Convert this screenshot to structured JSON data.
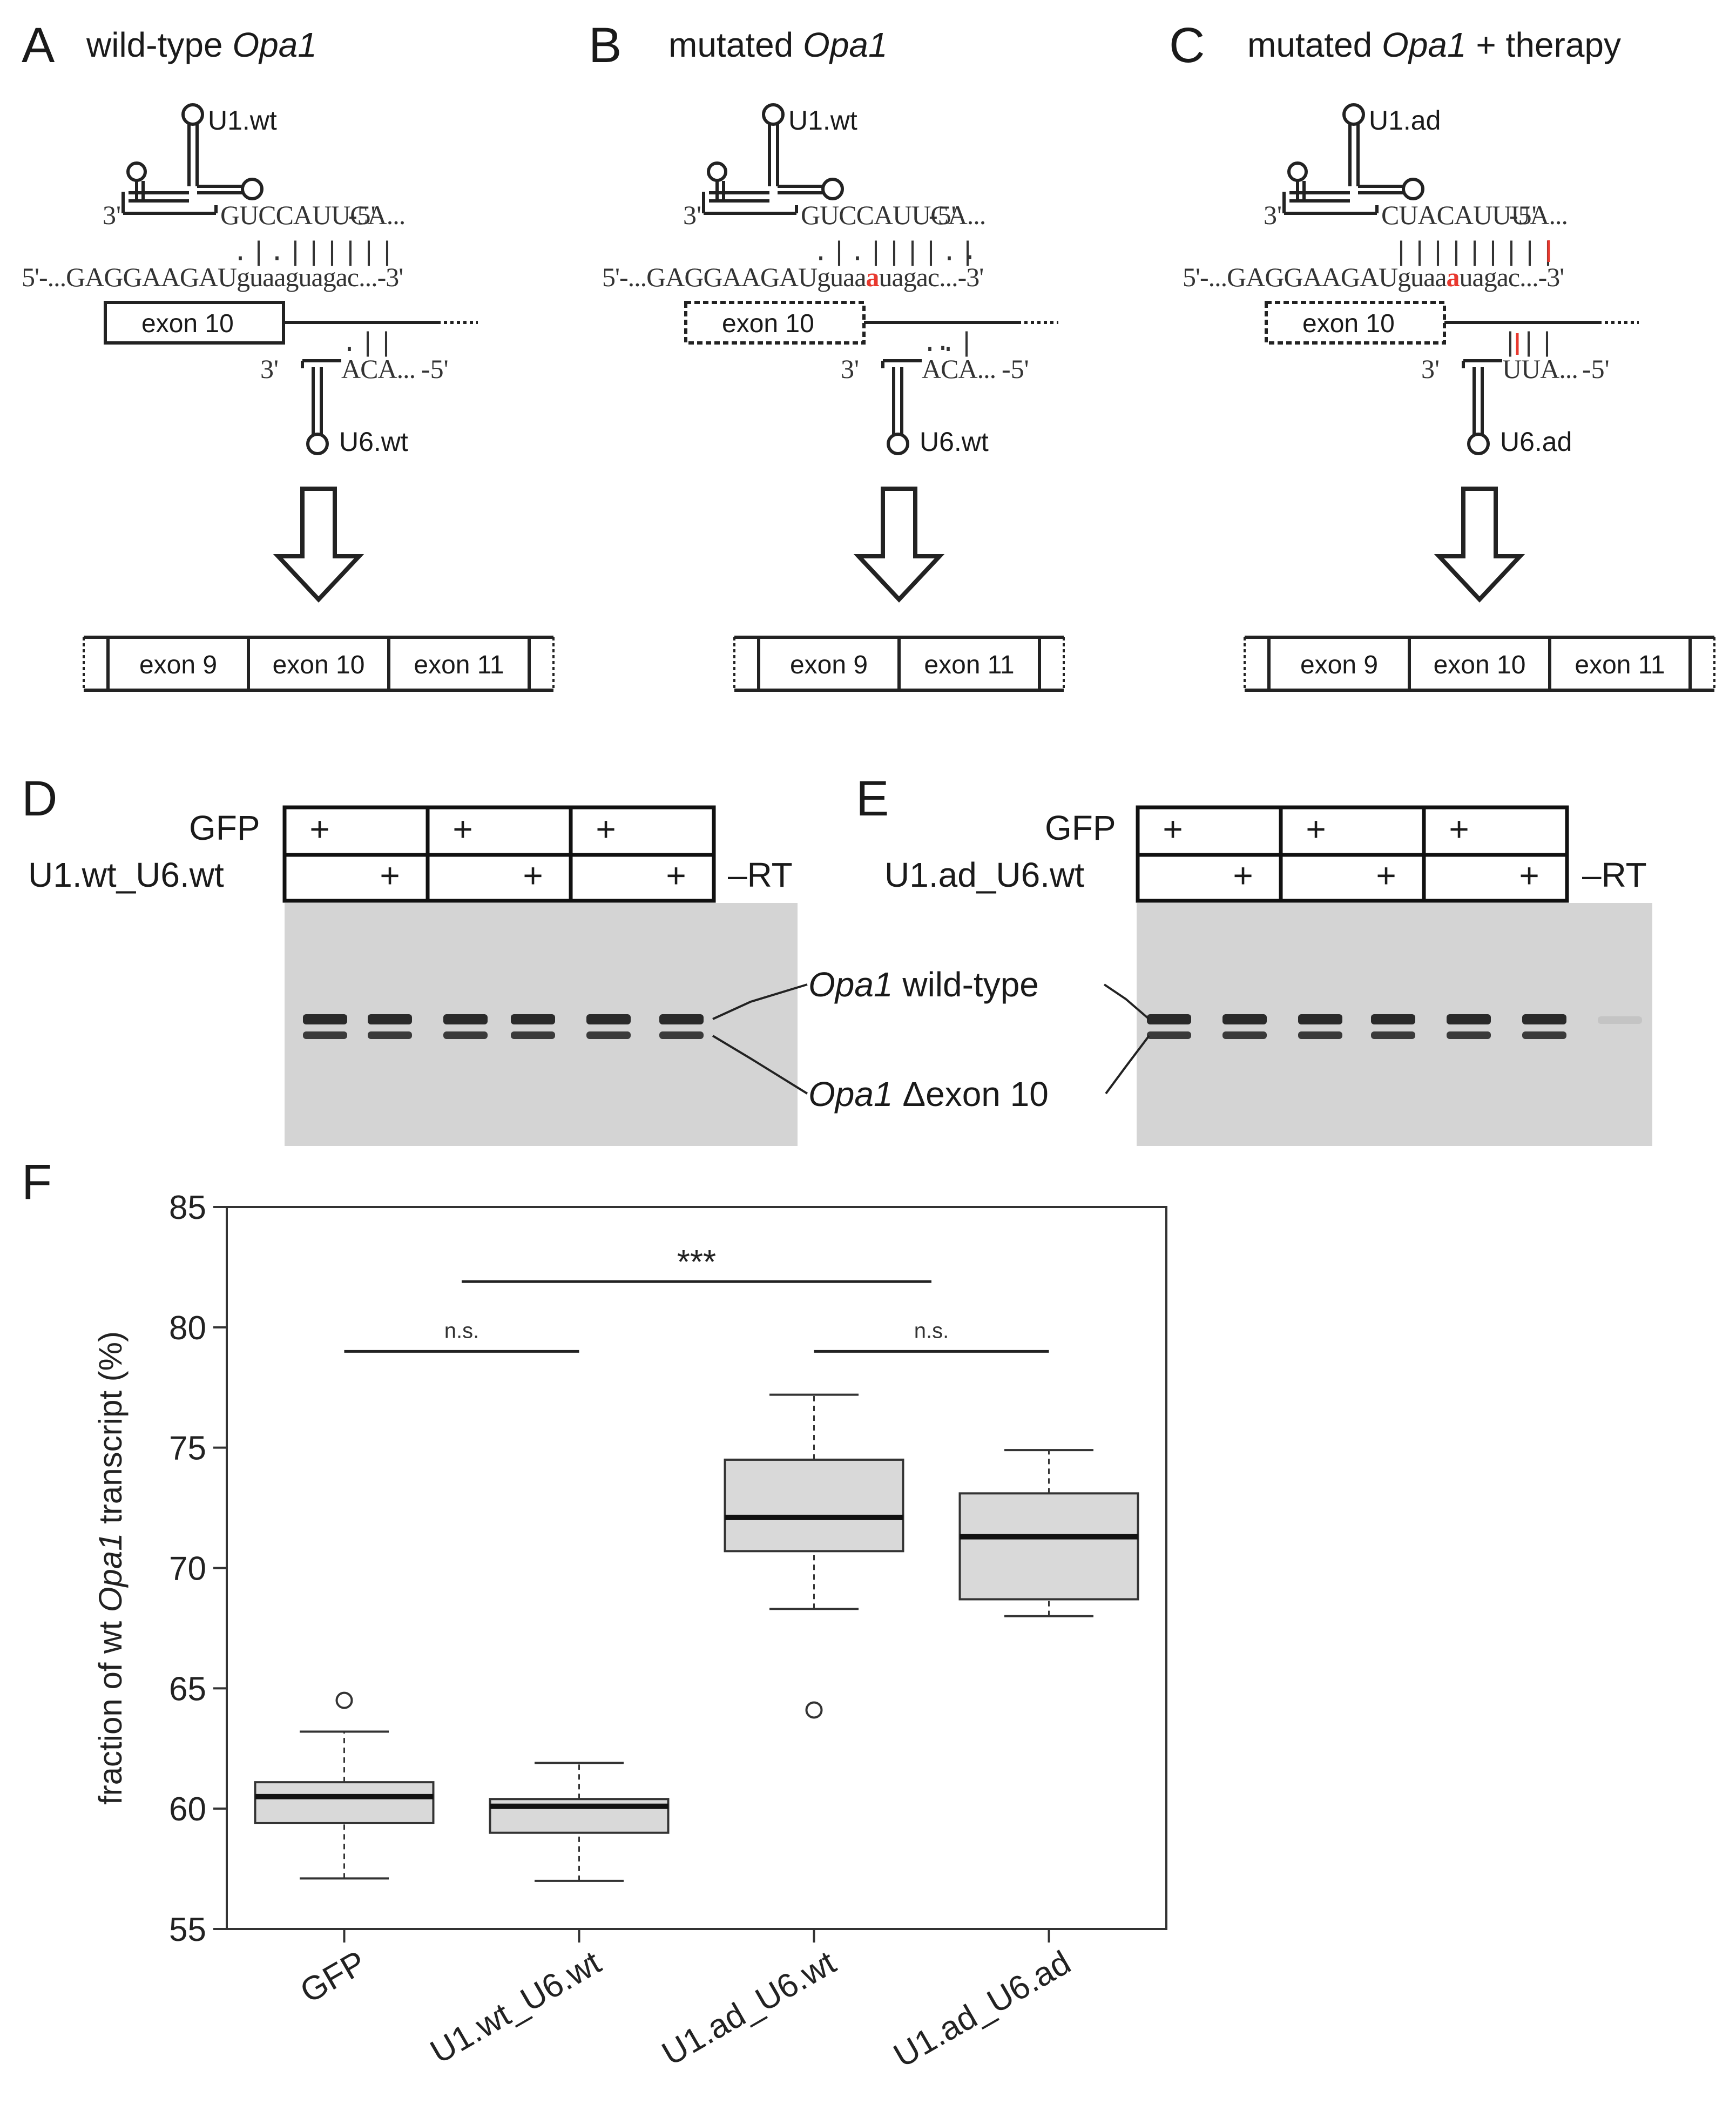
{
  "panels": {
    "A": {
      "letter": "A",
      "title_prefix": "wild-type ",
      "title_italic": "Opa1",
      "title_suffix": "",
      "u1_name": "U1.wt",
      "u1_seq_3": "3'",
      "u1_seq": "GUCCAUUCA...",
      "u1_seq_5": "-5'",
      "pairing_top": ".|.||||||",
      "pre_mrna_5": "5'-...",
      "pre_mrna_exon": "GAGGAAGAU",
      "pre_mrna_intron_a": "guaa",
      "pre_mrna_mut": "g",
      "pre_mrna_intron_b": "uagac...",
      "pre_mrna_3": "-3'",
      "exon_box": "exon 10",
      "pairing_bottom": ".||",
      "u6_seq_3": "3'",
      "u6_seq": "ACA...",
      "u6_seq_5": "-5'",
      "u6_name": "U6.wt",
      "product_exons": [
        "exon 9",
        "exon 10",
        "exon 11"
      ]
    },
    "B": {
      "letter": "B",
      "title_prefix": "mutated ",
      "title_italic": "Opa1",
      "title_suffix": "",
      "u1_name": "U1.wt",
      "u1_seq_3": "3'",
      "u1_seq": "GUCCAUUCA...",
      "u1_seq_5": "-5'",
      "pairing_top": ".|.||||.|",
      "pre_mrna_5": "5'-...",
      "pre_mrna_exon": "GAGGAAGAU",
      "pre_mrna_intron_a": "guaa",
      "pre_mrna_mut": "a",
      "pre_mrna_intron_b": "uagac...",
      "pre_mrna_3": "-3'",
      "exon_box": "exon 10",
      "pairing_bottom": "..|",
      "u6_seq_3": "3'",
      "u6_seq": "ACA...",
      "u6_seq_5": "-5'",
      "u6_name": "U6.wt",
      "product_exons": [
        "exon 9",
        "exon 11"
      ]
    },
    "C": {
      "letter": "C",
      "title_prefix": "mutated ",
      "title_italic": "Opa1",
      "title_suffix": " + therapy",
      "u1_name": "U1.ad",
      "u1_seq_3": "3'",
      "u1_seq": "CUACAUUUA...",
      "u1_seq_5": "-5'",
      "pairing_top": "|||||||||",
      "pre_mrna_5": "5'-...",
      "pre_mrna_exon": "GAGGAAGAU",
      "pre_mrna_intron_a": "guaa",
      "pre_mrna_mut": "a",
      "pre_mrna_intron_b": "uagac...",
      "pre_mrna_3": "-3'",
      "exon_box": "exon 10",
      "pairing_bottom": "|||",
      "u6_seq_3": "3'",
      "u6_seq": "UUA...",
      "u6_seq_5": "-5'",
      "u6_name": "U6.ad",
      "product_exons": [
        "exon 9",
        "exon 10",
        "exon 11"
      ]
    },
    "D": {
      "letter": "D",
      "row1_label": "GFP",
      "row2_label": "U1.wt_U6.wt",
      "plus": "+",
      "minus_rt": "–RT"
    },
    "E": {
      "letter": "E",
      "row1_label": "GFP",
      "row2_label": "U1.ad_U6.wt",
      "plus": "+",
      "minus_rt": "–RT"
    },
    "gel_labels": {
      "wt_italic": "Opa1",
      "wt_text": " wild-type",
      "delta_italic": "Opa1",
      "delta_text": " Δexon 10"
    },
    "F": {
      "letter": "F"
    }
  },
  "chart_data": {
    "type": "box",
    "categories": [
      "GFP",
      "U1.wt_U6.wt",
      "U1.ad_U6.wt",
      "U1.ad_U6.ad"
    ],
    "ylabel_prefix": "fraction of wt ",
    "ylabel_italic": "Opa1",
    "ylabel_suffix": " transcript (%)",
    "ylim": [
      55,
      85
    ],
    "yticks": [
      55,
      60,
      65,
      70,
      75,
      80,
      85
    ],
    "boxes": [
      {
        "whisker_low": 57.1,
        "q1": 59.4,
        "median": 60.5,
        "q3": 61.1,
        "whisker_high": 63.2,
        "outliers": [
          64.5
        ]
      },
      {
        "whisker_low": 57.0,
        "q1": 59.0,
        "median": 60.1,
        "q3": 60.4,
        "whisker_high": 61.9,
        "outliers": []
      },
      {
        "whisker_low": 68.3,
        "q1": 70.7,
        "median": 72.1,
        "q3": 74.5,
        "whisker_high": 77.2,
        "outliers": [
          64.1
        ]
      },
      {
        "whisker_low": 68.0,
        "q1": 68.7,
        "median": 71.3,
        "q3": 73.1,
        "whisker_high": 74.9,
        "outliers": []
      }
    ],
    "significance": [
      {
        "from": 0,
        "to": 1,
        "y": 79.0,
        "label": "n.s."
      },
      {
        "from": 2,
        "to": 3,
        "y": 79.0,
        "label": "n.s."
      },
      {
        "from": 0.5,
        "to": 2.5,
        "y": 81.9,
        "label": "***"
      }
    ],
    "box_fill": "#d9d9d9"
  },
  "colors": {
    "mutation": "#e8382e",
    "gel_bg": "#d4d4d4",
    "band": "#2a2a2a"
  }
}
